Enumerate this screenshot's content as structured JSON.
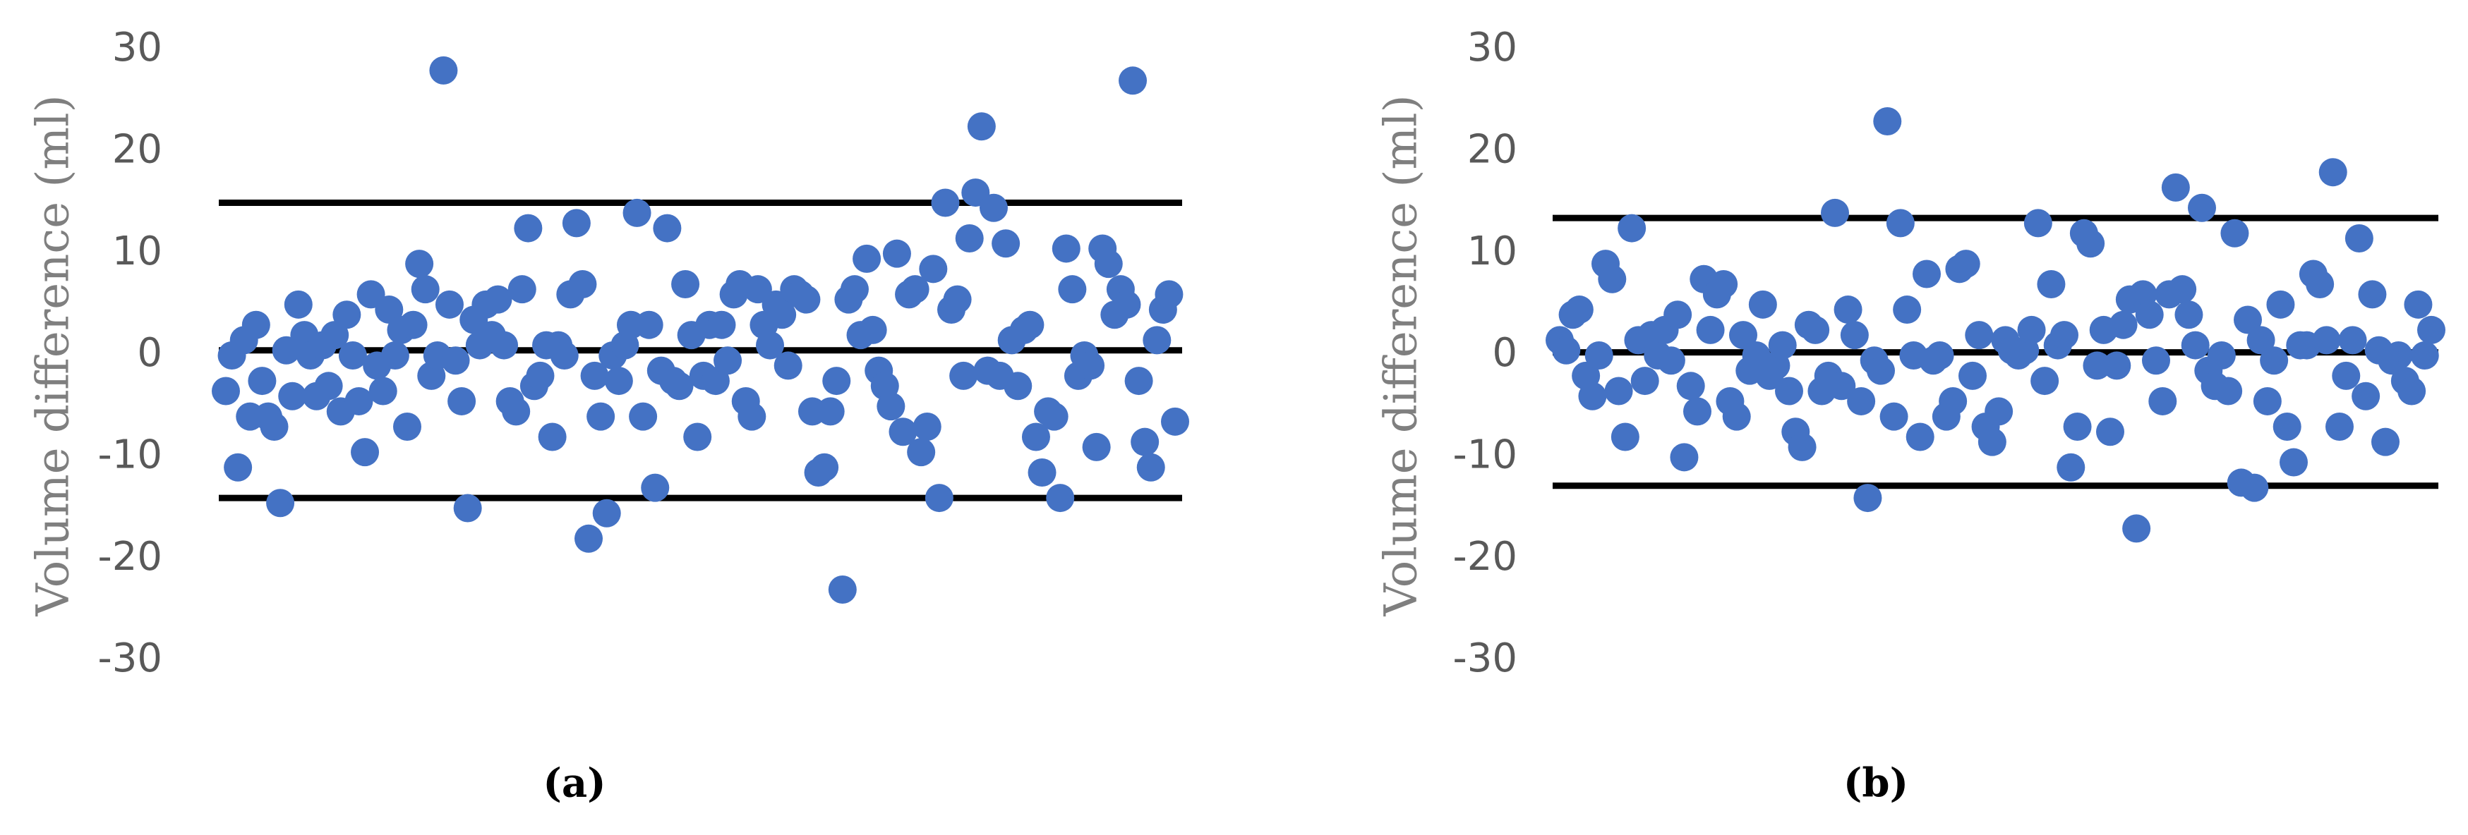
{
  "chart_data": [
    {
      "type": "scatter",
      "label": "(a)",
      "y_label": "Volume difference (ml)",
      "color": "#4472c4",
      "ylim": [
        -30,
        30
      ],
      "yticks": [
        -30,
        -20,
        -10,
        0,
        10,
        20,
        30
      ],
      "reference_lines": [
        15,
        0.5,
        -14
      ],
      "values": [
        -3.5,
        0,
        -11,
        1.5,
        -6,
        3,
        -2.5,
        -6,
        -7,
        -14.5,
        0.5,
        -4,
        5,
        2,
        0,
        -4,
        1,
        -3,
        2,
        -5.5,
        4,
        0,
        -4.5,
        -9.5,
        6,
        -1,
        -3.5,
        4.5,
        0,
        2.5,
        -7,
        3,
        9,
        6.5,
        -2,
        0,
        28,
        5,
        -0.5,
        -4.5,
        -15,
        3.5,
        1,
        5,
        2,
        5.5,
        1,
        -4.5,
        -5.5,
        6.5,
        12.5,
        -3,
        -2,
        1,
        -8,
        1,
        0,
        6,
        13,
        7,
        -18,
        -2,
        -6,
        -15.5,
        0,
        -2.5,
        1,
        3,
        14,
        -6,
        3,
        -13,
        -1.5,
        12.5,
        -2.5,
        -3,
        7,
        2,
        -8,
        -2,
        3,
        -2.5,
        3,
        -0.5,
        6,
        7,
        -4.5,
        -6,
        6.5,
        3,
        1,
        5,
        4,
        -1,
        6.5,
        6,
        5.5,
        -5.5,
        -11.5,
        -11,
        -5.5,
        -2.5,
        -23,
        5.5,
        6.5,
        2,
        9.5,
        2.5,
        -1.5,
        -3,
        -5,
        10,
        -7.5,
        6,
        6.5,
        -9.5,
        -7,
        8.5,
        -14,
        15,
        4.5,
        5.5,
        -2,
        11.5,
        16,
        22.5,
        -1.5,
        14.5,
        -2,
        11,
        1.5,
        -3,
        2.5,
        3,
        -8,
        -11.5,
        -5.5,
        -6,
        -14,
        10.5,
        6.5,
        -2,
        0,
        -1,
        -9,
        10.5,
        9,
        4,
        6.5,
        5,
        27,
        -2.5,
        -8.5,
        -11,
        1.5,
        4.5,
        6,
        -6.5
      ]
    },
    {
      "type": "scatter",
      "label": "(b)",
      "y_label": "Volume difference (ml)",
      "color": "#4472c4",
      "ylim": [
        -30,
        30
      ],
      "yticks": [
        -30,
        -20,
        -10,
        0,
        10,
        20,
        30
      ],
      "reference_lines": [
        13.5,
        0.3,
        -12.8
      ],
      "values": [
        1.5,
        0.5,
        4,
        4.5,
        -2,
        -4,
        0,
        9,
        7.5,
        -3.5,
        -8,
        12.5,
        1.5,
        -2.5,
        2,
        0,
        2.5,
        -0.5,
        4,
        -10,
        -3,
        -5.5,
        7.5,
        2.5,
        6,
        7,
        -4.5,
        -6,
        2,
        -1.5,
        0,
        5,
        -2,
        -1,
        1,
        -3.5,
        -7.5,
        -9,
        3,
        2.5,
        -3.5,
        -2,
        14,
        -3,
        4.5,
        2,
        -4.5,
        -14,
        -0.5,
        -1.5,
        23,
        -6,
        13,
        4.5,
        0,
        -8,
        8,
        -0.5,
        0,
        -6,
        -4.5,
        8.5,
        9,
        -2,
        2,
        -7,
        -8.5,
        -5.5,
        1.5,
        0.5,
        0,
        0.5,
        2.5,
        13,
        -2.5,
        7,
        1,
        2,
        -11,
        -7,
        12,
        11,
        -1,
        2.5,
        -7.5,
        -1,
        3,
        5.5,
        -17,
        6,
        4,
        -0.5,
        -4.5,
        6,
        16.5,
        6.5,
        4,
        1,
        14.5,
        -1.5,
        -3,
        0,
        -3.5,
        12,
        -12.5,
        3.5,
        -13,
        1.5,
        -4.5,
        -0.5,
        5,
        -7,
        -10.5,
        1,
        1,
        8,
        7,
        1.5,
        18,
        -7,
        -2,
        1.5,
        11.5,
        -4,
        6,
        0.5,
        -8.5,
        -0.5,
        0,
        -2.5,
        -3.5,
        5,
        0,
        2.5
      ]
    }
  ]
}
